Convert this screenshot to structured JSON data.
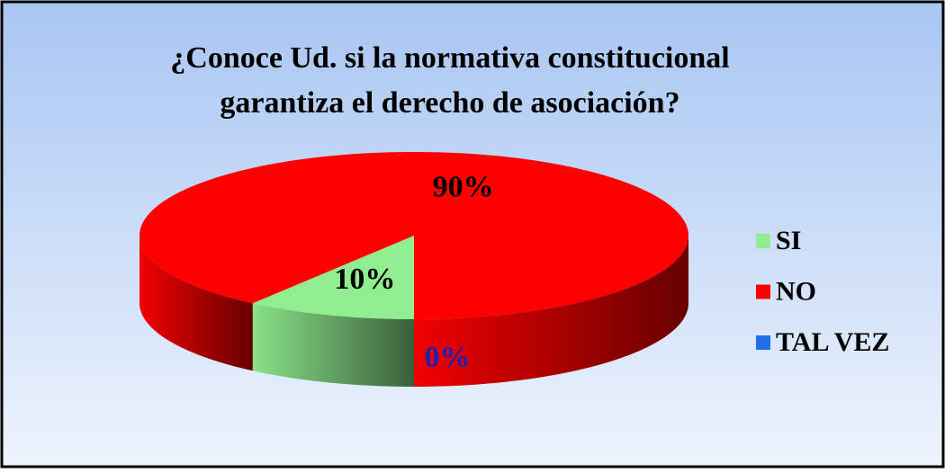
{
  "chart_data": {
    "type": "pie3d",
    "title": [
      "¿Conoce Ud. si la normativa constitucional",
      "garantiza el derecho de asociación?"
    ],
    "categories": [
      "SI",
      "NO",
      "TAL VEZ"
    ],
    "values": [
      10,
      90,
      0
    ],
    "value_labels": [
      "10%",
      "90%",
      "0%"
    ],
    "colors": [
      "#90ee90",
      "#ff0000",
      "#1e6fe8"
    ],
    "label_colors": [
      "#000000",
      "#000000",
      "#2020b0"
    ],
    "legend": "right"
  }
}
